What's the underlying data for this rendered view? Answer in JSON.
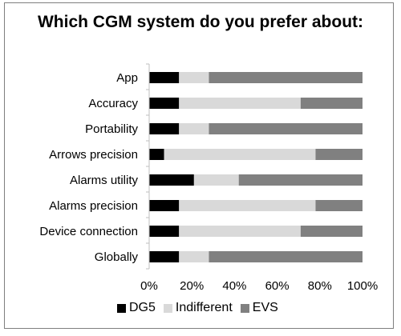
{
  "chart_data": {
    "type": "bar",
    "orientation": "horizontal",
    "stacked": true,
    "percent_stacked": true,
    "title": "Which CGM system do you prefer about:",
    "categories": [
      "App",
      "Accuracy",
      "Portability",
      "Arrows precision",
      "Alarms utility",
      "Alarms precision",
      "Device connection",
      "Globally"
    ],
    "series": [
      {
        "name": "DG5",
        "color": "#000000",
        "values": [
          14,
          14,
          14,
          7,
          21,
          14,
          14,
          14
        ]
      },
      {
        "name": "Indifferent",
        "color": "#d9d9d9",
        "values": [
          14,
          57,
          14,
          71,
          21,
          64,
          57,
          14
        ]
      },
      {
        "name": "EVS",
        "color": "#808080",
        "values": [
          72,
          29,
          72,
          22,
          58,
          22,
          29,
          72
        ]
      }
    ],
    "xlim": [
      0,
      100
    ],
    "x_ticks": [
      "0%",
      "20%",
      "40%",
      "60%",
      "80%",
      "100%"
    ],
    "grid": false,
    "legend_position": "bottom"
  }
}
